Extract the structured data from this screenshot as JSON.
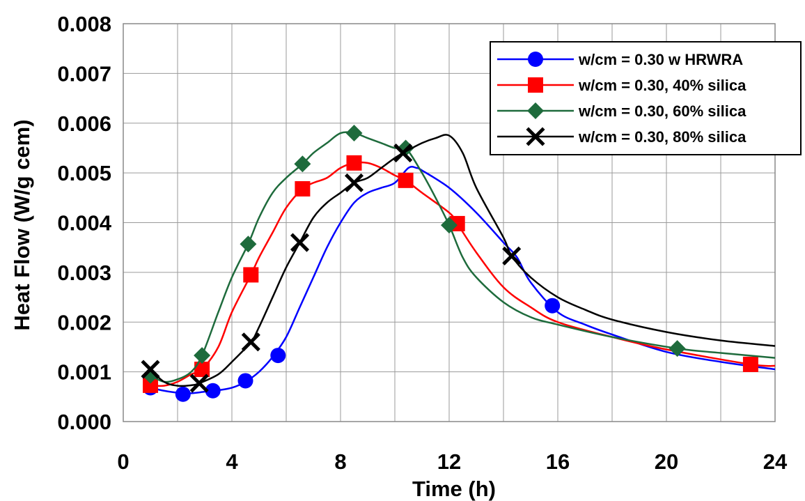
{
  "chart_data": {
    "type": "line",
    "title": "",
    "xlabel": "Time (h)",
    "ylabel": "Heat Flow (W/g cem)",
    "xlim": [
      0,
      24
    ],
    "ylim": [
      0,
      0.008
    ],
    "xticks": [
      "0",
      "4",
      "8",
      "12",
      "16",
      "20",
      "24"
    ],
    "yticks": [
      "0.000",
      "0.001",
      "0.002",
      "0.003",
      "0.004",
      "0.005",
      "0.006",
      "0.007",
      "0.008"
    ],
    "grid": true,
    "legend_position": "top-right",
    "series": [
      {
        "name": "w/cm = 0.30 w HRWRA",
        "color": "#0000ff",
        "marker": "circle",
        "x": [
          1.0,
          1.5,
          2.0,
          2.5,
          3.0,
          3.5,
          4.0,
          4.5,
          5.0,
          5.5,
          6.0,
          6.5,
          7.0,
          7.5,
          8.0,
          8.5,
          9.0,
          9.5,
          10.0,
          10.5,
          10.8,
          11.0,
          12.0,
          13.0,
          14.0,
          14.5,
          15.0,
          16.0,
          17.0,
          18.0,
          20.0,
          22.0,
          24.0
        ],
        "y": [
          0.00068,
          0.00062,
          0.00058,
          0.00057,
          0.0006,
          0.00063,
          0.00068,
          0.0008,
          0.001,
          0.0013,
          0.0017,
          0.0023,
          0.0029,
          0.0035,
          0.004,
          0.0044,
          0.0046,
          0.0047,
          0.0048,
          0.0051,
          0.0051,
          0.00505,
          0.0047,
          0.0042,
          0.0036,
          0.0033,
          0.0028,
          0.0022,
          0.00195,
          0.00175,
          0.0014,
          0.0012,
          0.00105
        ],
        "markers_x": [
          1.0,
          2.2,
          3.3,
          4.5,
          5.7,
          15.8
        ],
        "markers_y": [
          0.00068,
          0.00055,
          0.00062,
          0.00082,
          0.00133,
          0.00233
        ]
      },
      {
        "name": "w/cm = 0.30, 40% silica",
        "color": "#ff0000",
        "marker": "square",
        "x": [
          1.0,
          1.5,
          2.0,
          2.5,
          2.9,
          3.5,
          4.0,
          4.7,
          5.0,
          5.5,
          6.0,
          6.6,
          7.0,
          7.5,
          8.0,
          8.5,
          9.0,
          9.5,
          10.0,
          10.4,
          11.0,
          12.0,
          12.3,
          13.0,
          14.0,
          15.0,
          16.0,
          18.0,
          20.0,
          23.1,
          24.0
        ],
        "y": [
          0.00073,
          0.00072,
          0.0008,
          0.00095,
          0.00105,
          0.0015,
          0.0022,
          0.00295,
          0.0033,
          0.0038,
          0.0043,
          0.00468,
          0.0048,
          0.0049,
          0.0051,
          0.0052,
          0.0052,
          0.0051,
          0.00495,
          0.00485,
          0.0046,
          0.0042,
          0.00398,
          0.0034,
          0.0027,
          0.0023,
          0.002,
          0.0017,
          0.00145,
          0.00115,
          0.00112
        ],
        "markers_x": [
          1.0,
          2.9,
          4.7,
          6.6,
          8.5,
          10.4,
          12.3,
          23.1
        ],
        "markers_y": [
          0.00073,
          0.00105,
          0.00295,
          0.00468,
          0.0052,
          0.00485,
          0.00398,
          0.00115
        ]
      },
      {
        "name": "w/cm = 0.30, 60% silica",
        "color": "#1e6b3c",
        "marker": "diamond",
        "x": [
          1.0,
          1.5,
          2.0,
          2.5,
          2.9,
          3.5,
          4.0,
          4.6,
          5.0,
          5.5,
          6.0,
          6.6,
          7.0,
          7.5,
          8.0,
          8.5,
          9.0,
          9.5,
          10.0,
          10.4,
          11.0,
          11.5,
          12.0,
          12.5,
          13.0,
          14.0,
          15.0,
          16.0,
          18.0,
          20.4,
          22.0,
          24.0
        ],
        "y": [
          0.00093,
          0.0008,
          0.00085,
          0.001,
          0.00133,
          0.0022,
          0.0029,
          0.00357,
          0.0041,
          0.0046,
          0.0049,
          0.00518,
          0.0054,
          0.0056,
          0.0058,
          0.0058,
          0.0057,
          0.0056,
          0.0055,
          0.0055,
          0.005,
          0.0045,
          0.00395,
          0.0033,
          0.0029,
          0.0024,
          0.0021,
          0.00195,
          0.0017,
          0.00147,
          0.00138,
          0.00128
        ],
        "markers_x": [
          1.0,
          2.9,
          4.6,
          6.6,
          8.5,
          10.4,
          12.0,
          20.4
        ],
        "markers_y": [
          0.00093,
          0.00133,
          0.00357,
          0.00518,
          0.0058,
          0.0055,
          0.00395,
          0.00147
        ]
      },
      {
        "name": "w/cm = 0.30, 80% silica",
        "color": "#000000",
        "marker": "x",
        "x": [
          1.0,
          1.5,
          2.0,
          2.5,
          2.8,
          3.5,
          4.0,
          4.7,
          5.0,
          5.5,
          6.0,
          6.5,
          7.0,
          7.5,
          8.0,
          8.5,
          9.0,
          9.5,
          10.0,
          10.3,
          11.0,
          11.5,
          12.0,
          12.5,
          13.0,
          14.0,
          14.3,
          15.0,
          16.0,
          17.0,
          18.0,
          20.0,
          22.0,
          24.0
        ],
        "y": [
          0.00105,
          0.0008,
          0.00072,
          0.00073,
          0.00077,
          0.00095,
          0.0012,
          0.0016,
          0.0019,
          0.0025,
          0.0031,
          0.0036,
          0.0041,
          0.0044,
          0.0046,
          0.0048,
          0.0049,
          0.0051,
          0.0053,
          0.0054,
          0.0056,
          0.0057,
          0.00575,
          0.0054,
          0.0047,
          0.0037,
          0.00333,
          0.0029,
          0.0025,
          0.00225,
          0.00205,
          0.0018,
          0.00163,
          0.00152
        ],
        "markers_x": [
          1.0,
          2.8,
          4.7,
          6.5,
          8.5,
          10.3,
          14.3
        ],
        "markers_y": [
          0.00105,
          0.00077,
          0.0016,
          0.0036,
          0.0048,
          0.0054,
          0.00333
        ]
      }
    ]
  }
}
